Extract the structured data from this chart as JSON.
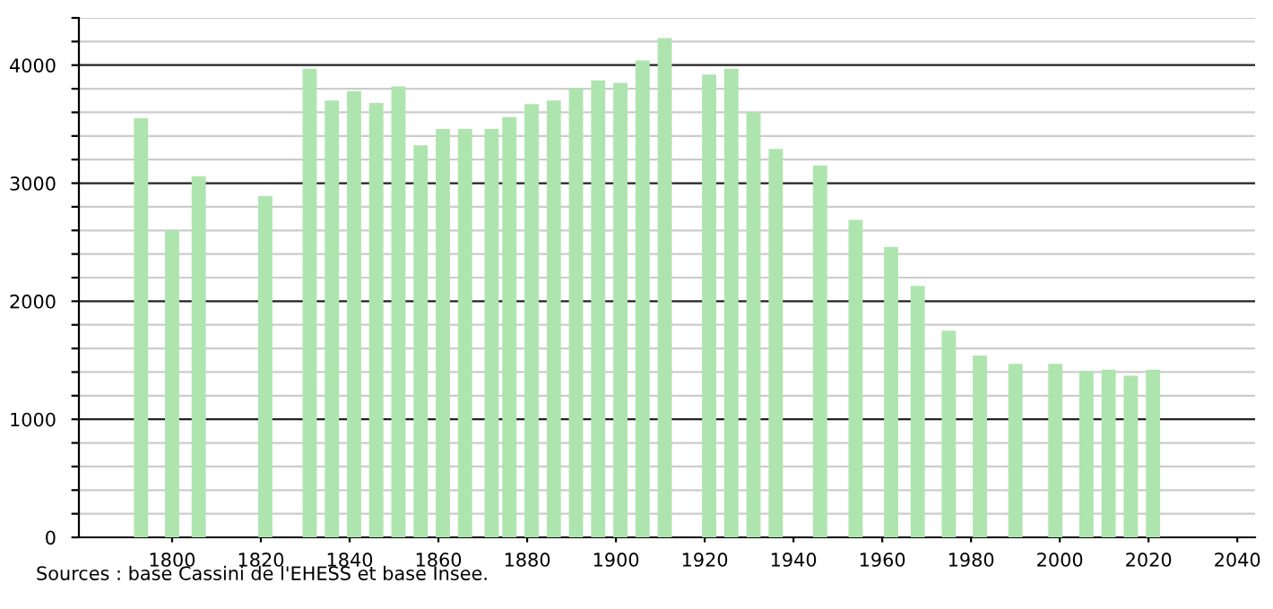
{
  "chart_data": {
    "type": "bar",
    "color": "#aee5ae",
    "x": [
      1793,
      1800,
      1806,
      1821,
      1831,
      1836,
      1841,
      1846,
      1851,
      1856,
      1861,
      1866,
      1872,
      1876,
      1881,
      1886,
      1891,
      1896,
      1901,
      1906,
      1911,
      1921,
      1926,
      1931,
      1936,
      1946,
      1954,
      1962,
      1968,
      1975,
      1982,
      1990,
      1999,
      2006,
      2011,
      2016,
      2021
    ],
    "values": [
      3550,
      2600,
      3060,
      2890,
      3970,
      3700,
      3780,
      3680,
      3820,
      3320,
      3460,
      3460,
      3460,
      3560,
      3670,
      3700,
      3800,
      3870,
      3850,
      4040,
      4230,
      3920,
      3970,
      3600,
      3290,
      3150,
      2690,
      2460,
      2130,
      1750,
      1540,
      1470,
      1470,
      1410,
      1420,
      1370,
      1420
    ],
    "xlim": [
      1779,
      2044
    ],
    "ylim": [
      0,
      4400
    ],
    "xticks": [
      1800,
      1820,
      1840,
      1860,
      1880,
      1900,
      1920,
      1940,
      1960,
      1980,
      2000,
      2020,
      2040
    ],
    "yticks": [
      0,
      {
        "value": 200,
        "label": null
      },
      {
        "value": 400,
        "label": null
      },
      {
        "value": 600,
        "label": null
      },
      {
        "value": 800,
        "label": null
      },
      1000,
      {
        "value": 1200,
        "label": null
      },
      {
        "value": 1400,
        "label": null
      },
      {
        "value": 1600,
        "label": null
      },
      {
        "value": 1800,
        "label": null
      },
      2000,
      {
        "value": 2200,
        "label": null
      },
      {
        "value": 2400,
        "label": null
      },
      {
        "value": 2600,
        "label": null
      },
      {
        "value": 2800,
        "label": null
      },
      3000,
      {
        "value": 3200,
        "label": null
      },
      {
        "value": 3400,
        "label": null
      },
      {
        "value": 3600,
        "label": null
      },
      {
        "value": 3800,
        "label": null
      },
      4000,
      {
        "value": 4200,
        "label": null
      },
      {
        "value": 4400,
        "label": null
      }
    ],
    "grid": "y",
    "annotations": [
      "Sources : base Cassini de l'EHESS et base Insee."
    ]
  }
}
